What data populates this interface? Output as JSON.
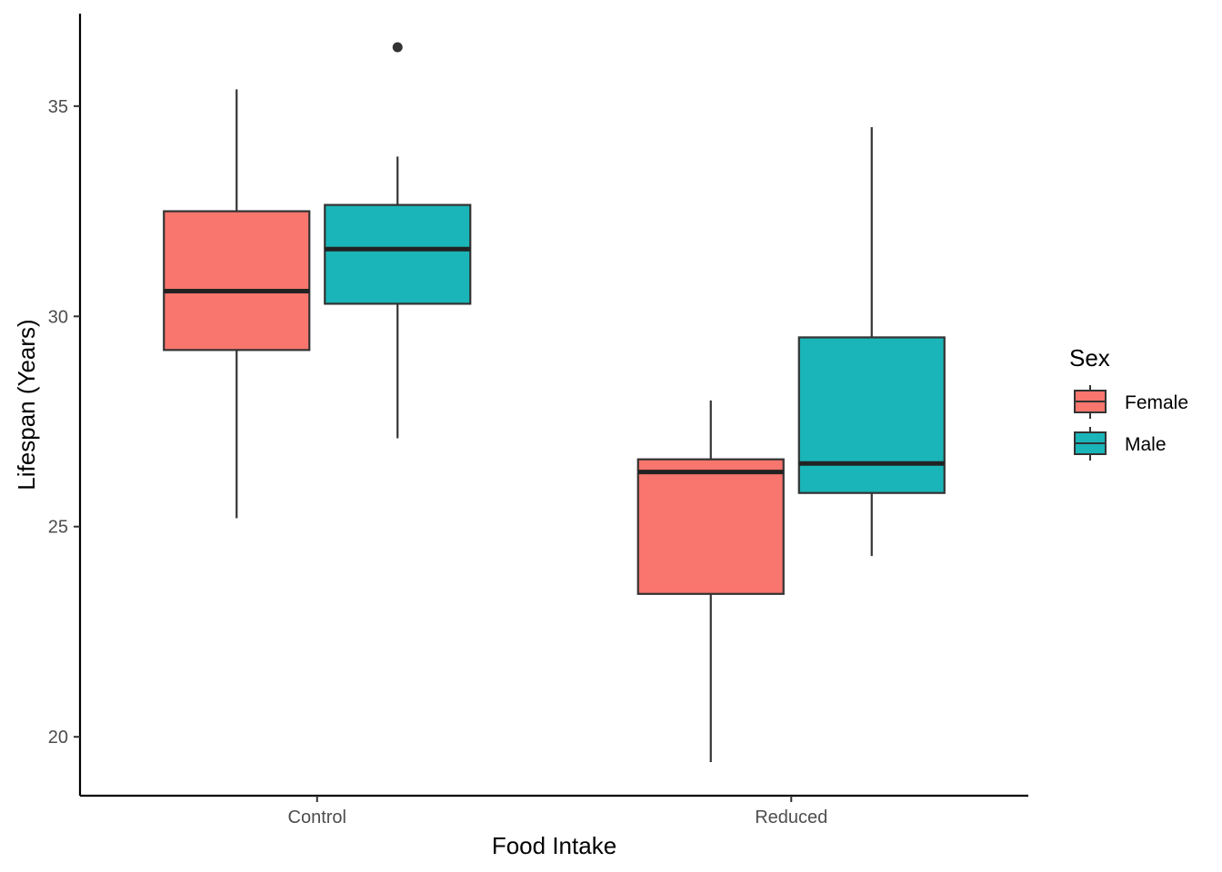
{
  "chart_data": {
    "type": "boxplot",
    "xlabel": "Food Intake",
    "ylabel": "Lifespan (Years)",
    "categories": [
      "Control",
      "Reduced"
    ],
    "ylim": [
      18.6,
      37.2
    ],
    "yticks": [
      20,
      25,
      30,
      35
    ],
    "ytick_labels": [
      "20",
      "25",
      "30",
      "35"
    ],
    "legend": {
      "title": "Sex",
      "position": "right"
    },
    "series": [
      {
        "name": "Female",
        "color": "#F8766D",
        "boxes": [
          {
            "category": "Control",
            "whisker_low": 25.2,
            "q1": 29.2,
            "median": 30.6,
            "q3": 32.5,
            "whisker_high": 35.4,
            "outliers": []
          },
          {
            "category": "Reduced",
            "whisker_low": 19.4,
            "q1": 23.4,
            "median": 26.3,
            "q3": 26.6,
            "whisker_high": 28.0,
            "outliers": []
          }
        ]
      },
      {
        "name": "Male",
        "color": "#1AB5B8",
        "boxes": [
          {
            "category": "Control",
            "whisker_low": 27.1,
            "q1": 30.3,
            "median": 31.6,
            "q3": 32.65,
            "whisker_high": 33.8,
            "outliers": [
              36.4
            ]
          },
          {
            "category": "Reduced",
            "whisker_low": 24.3,
            "q1": 25.8,
            "median": 26.5,
            "q3": 29.5,
            "whisker_high": 34.5,
            "outliers": []
          }
        ]
      }
    ]
  }
}
